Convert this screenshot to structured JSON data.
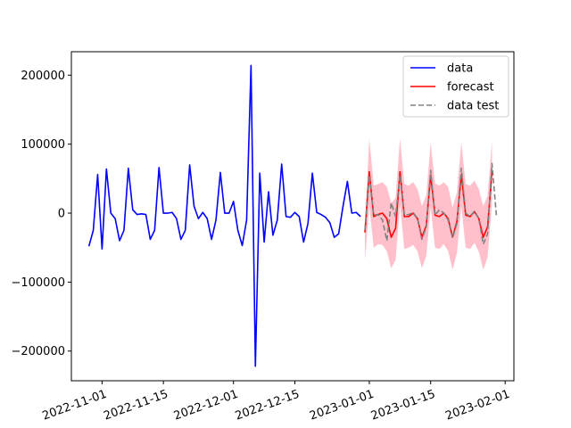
{
  "chart_data": {
    "type": "line",
    "title": "",
    "xlabel": "",
    "ylabel": "",
    "xlim": [
      "2022-10-25",
      "2023-02-03"
    ],
    "ylim": [
      -243000,
      234000
    ],
    "x_ticks": [
      "2022-11-01",
      "2022-11-15",
      "2022-12-01",
      "2022-12-15",
      "2023-01-01",
      "2023-01-15",
      "2023-02-01"
    ],
    "x_tick_rotation_deg": 20,
    "y_ticks": [
      200000,
      100000,
      0,
      -100000,
      -200000
    ],
    "grid": false,
    "legend": {
      "placement": "top-right"
    },
    "colors": {
      "data": "#0000ff",
      "forecast": "#ff0000",
      "data_test": "#808080",
      "band": "#ffc0cb"
    },
    "series": [
      {
        "name": "data",
        "style": "solid",
        "color": "#0000ff",
        "x": [
          "2022-10-29",
          "2022-10-30",
          "2022-10-31",
          "2022-11-01",
          "2022-11-02",
          "2022-11-03",
          "2022-11-04",
          "2022-11-05",
          "2022-11-06",
          "2022-11-07",
          "2022-11-08",
          "2022-11-09",
          "2022-11-10",
          "2022-11-11",
          "2022-11-12",
          "2022-11-13",
          "2022-11-14",
          "2022-11-15",
          "2022-11-16",
          "2022-11-17",
          "2022-11-18",
          "2022-11-19",
          "2022-11-20",
          "2022-11-21",
          "2022-11-22",
          "2022-11-23",
          "2022-11-24",
          "2022-11-25",
          "2022-11-26",
          "2022-11-27",
          "2022-11-28",
          "2022-11-29",
          "2022-11-30",
          "2022-12-01",
          "2022-12-02",
          "2022-12-03",
          "2022-12-04",
          "2022-12-05",
          "2022-12-06",
          "2022-12-07",
          "2022-12-08",
          "2022-12-09",
          "2022-12-10",
          "2022-12-11",
          "2022-12-12",
          "2022-12-13",
          "2022-12-14",
          "2022-12-15",
          "2022-12-16",
          "2022-12-17",
          "2022-12-18",
          "2022-12-19",
          "2022-12-20",
          "2022-12-21",
          "2022-12-22",
          "2022-12-23",
          "2022-12-24",
          "2022-12-25",
          "2022-12-26",
          "2022-12-27",
          "2022-12-28",
          "2022-12-29",
          "2022-12-30"
        ],
        "y": [
          -48000,
          -25000,
          56000,
          -52000,
          64000,
          0,
          -8000,
          -40000,
          -25000,
          65000,
          5000,
          -2000,
          -1000,
          -2000,
          -38000,
          -25000,
          66000,
          0,
          0,
          1000,
          -8000,
          -38000,
          -25000,
          70000,
          10000,
          -8000,
          1000,
          -8000,
          -38000,
          -10000,
          59000,
          0,
          0,
          17000,
          -25000,
          -47000,
          -10000,
          214000,
          -222000,
          58000,
          -42000,
          31000,
          -32000,
          -10000,
          71000,
          -5000,
          -6000,
          1000,
          -5000,
          -42000,
          -15000,
          58000,
          1000,
          -2000,
          -6000,
          -14000,
          -35000,
          -30000,
          10000,
          46000,
          0,
          1000,
          -5000
        ]
      },
      {
        "name": "forecast",
        "style": "solid",
        "color": "#ff0000",
        "x": [
          "2022-12-31",
          "2023-01-01",
          "2023-01-02",
          "2023-01-03",
          "2023-01-04",
          "2023-01-05",
          "2023-01-06",
          "2023-01-07",
          "2023-01-08",
          "2023-01-09",
          "2023-01-10",
          "2023-01-11",
          "2023-01-12",
          "2023-01-13",
          "2023-01-14",
          "2023-01-15",
          "2023-01-16",
          "2023-01-17",
          "2023-01-18",
          "2023-01-19",
          "2023-01-20",
          "2023-01-21",
          "2023-01-22",
          "2023-01-23",
          "2023-01-24",
          "2023-01-25",
          "2023-01-26",
          "2023-01-27",
          "2023-01-28",
          "2023-01-29"
        ],
        "y": [
          -28000,
          60000,
          -5000,
          -2000,
          0,
          -8000,
          -35000,
          -22000,
          60000,
          -5000,
          -5000,
          0,
          -8000,
          -35000,
          -18000,
          55000,
          -3000,
          -5000,
          0,
          -8000,
          -35000,
          -12000,
          56000,
          -3000,
          -5000,
          2000,
          -8000,
          -35000,
          -20000,
          60000
        ],
        "band_upper": [
          -15000,
          108000,
          40000,
          42000,
          45000,
          38000,
          15000,
          22000,
          108000,
          42000,
          40000,
          45000,
          35000,
          10000,
          26000,
          102000,
          43000,
          40000,
          45000,
          38000,
          8000,
          30000,
          103000,
          42000,
          40000,
          47000,
          35000,
          10000,
          25000,
          105000
        ],
        "band_lower": [
          -68000,
          10000,
          -50000,
          -45000,
          -46000,
          -55000,
          -80000,
          -68000,
          12000,
          -52000,
          -50000,
          -46000,
          -55000,
          -80000,
          -62000,
          8000,
          -50000,
          -52000,
          -45000,
          -55000,
          -82000,
          -58000,
          10000,
          -50000,
          -52000,
          -43000,
          -56000,
          -82000,
          -64000,
          14000
        ]
      },
      {
        "name": "data test",
        "style": "dashed",
        "color": "#808080",
        "x": [
          "2022-12-31",
          "2023-01-01",
          "2023-01-02",
          "2023-01-03",
          "2023-01-04",
          "2023-01-05",
          "2023-01-06",
          "2023-01-07",
          "2023-01-08",
          "2023-01-09",
          "2023-01-10",
          "2023-01-11",
          "2023-01-12",
          "2023-01-13",
          "2023-01-14",
          "2023-01-15",
          "2023-01-16",
          "2023-01-17",
          "2023-01-18",
          "2023-01-19",
          "2023-01-20",
          "2023-01-21",
          "2023-01-22",
          "2023-01-23",
          "2023-01-24",
          "2023-01-25",
          "2023-01-26",
          "2023-01-27",
          "2023-01-28",
          "2023-01-29",
          "2023-01-30"
        ],
        "y": [
          -25000,
          55000,
          -3000,
          -2000,
          -10000,
          -40000,
          15000,
          -5000,
          55000,
          -3000,
          -2000,
          1000,
          -8000,
          -38000,
          -20000,
          62000,
          -3000,
          5000,
          0,
          -10000,
          -36000,
          -15000,
          65000,
          0,
          -5000,
          3000,
          -8000,
          -45000,
          -30000,
          72000,
          -3000
        ]
      }
    ]
  }
}
